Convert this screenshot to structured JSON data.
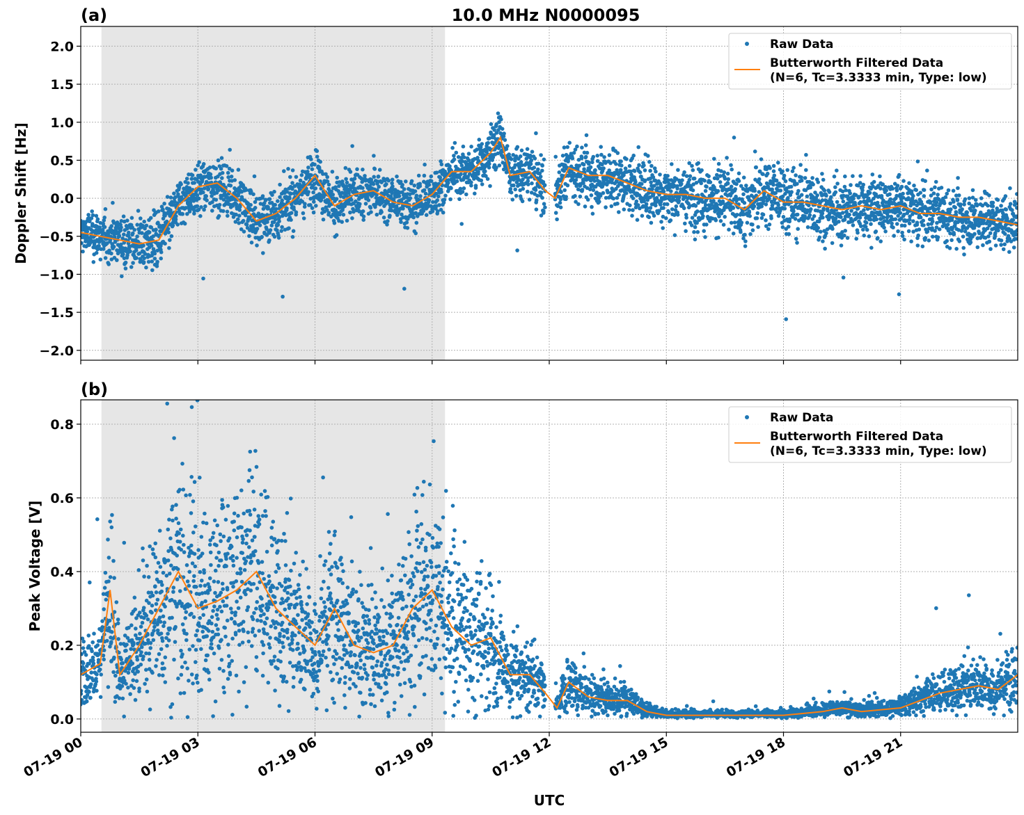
{
  "title": "10.0 MHz N0000095",
  "xlabel": "UTC",
  "x_tick_labels": [
    "07-19 00",
    "07-19 03",
    "07-19 06",
    "07-19 09",
    "07-19 12",
    "07-19 15",
    "07-19 18",
    "07-19 21"
  ],
  "colors": {
    "raw": "#1f77b4",
    "filtered": "#ff7f0e",
    "shade": "#e6e6e6"
  },
  "chart_data": [
    {
      "type": "scatter",
      "panel_label": "(a)",
      "ylabel": "Doppler Shift [Hz]",
      "x_units": "hours UTC on 07-19",
      "xlim": [
        0,
        24
      ],
      "ylim": [
        -2.13,
        2.26
      ],
      "yticks": [
        -2.0,
        -1.5,
        -1.0,
        -0.5,
        0.0,
        0.5,
        1.0,
        1.5,
        2.0
      ],
      "grid": true,
      "legend": "top-right",
      "shaded_interval_hours": [
        0.53,
        9.33
      ],
      "data_gap_hours": [
        11.9,
        12.15
      ],
      "series": [
        {
          "name": "Raw Data",
          "kind": "scatter",
          "spread_hz": [
            [
              0,
              0.3
            ],
            [
              2,
              0.35
            ],
            [
              4,
              0.35
            ],
            [
              6,
              0.35
            ],
            [
              9,
              0.3
            ],
            [
              12,
              0.35
            ],
            [
              14,
              0.4
            ],
            [
              17,
              0.45
            ],
            [
              20,
              0.4
            ],
            [
              24,
              0.35
            ]
          ]
        },
        {
          "name": "Butterworth Filtered Data\n(N=6, Tc=3.3333 min, Type: low)",
          "kind": "line",
          "x": [
            0,
            0.5,
            1,
            1.5,
            2,
            2.5,
            3,
            3.5,
            4,
            4.5,
            5,
            5.5,
            6,
            6.5,
            7,
            7.5,
            8,
            8.5,
            9,
            9.5,
            10,
            10.5,
            10.75,
            11,
            11.5,
            11.9,
            12.15,
            12.5,
            13,
            13.5,
            14,
            14.5,
            15,
            15.5,
            16,
            16.5,
            17,
            17.5,
            18,
            18.5,
            19,
            19.5,
            20,
            20.5,
            21,
            21.5,
            22,
            22.5,
            23,
            23.5,
            24
          ],
          "y": [
            -0.45,
            -0.5,
            -0.55,
            -0.6,
            -0.55,
            -0.1,
            0.15,
            0.2,
            0.0,
            -0.3,
            -0.2,
            0.0,
            0.3,
            -0.1,
            0.05,
            0.1,
            -0.05,
            -0.1,
            0.05,
            0.35,
            0.35,
            0.6,
            0.8,
            0.3,
            0.35,
            0.1,
            0.0,
            0.4,
            0.3,
            0.3,
            0.2,
            0.1,
            0.05,
            0.05,
            0.0,
            0.0,
            -0.15,
            0.1,
            -0.05,
            -0.05,
            -0.1,
            -0.15,
            -0.1,
            -0.15,
            -0.1,
            -0.2,
            -0.2,
            -0.25,
            -0.25,
            -0.3,
            -0.35
          ]
        }
      ]
    },
    {
      "type": "scatter",
      "panel_label": "(b)",
      "ylabel": "Peak Voltage [V]",
      "x_units": "hours UTC on 07-19",
      "xlim": [
        0,
        24
      ],
      "ylim": [
        -0.036,
        0.866
      ],
      "yticks": [
        0.0,
        0.2,
        0.4,
        0.6,
        0.8
      ],
      "grid": true,
      "legend": "top-right",
      "shaded_interval_hours": [
        0.53,
        9.33
      ],
      "data_gap_hours": [
        11.9,
        12.15
      ],
      "series": [
        {
          "name": "Raw Data",
          "kind": "scatter",
          "relative_spread": 0.9
        },
        {
          "name": "Butterworth Filtered Data\n(N=6, Tc=3.3333 min, Type: low)",
          "kind": "line",
          "x": [
            0,
            0.5,
            0.75,
            1,
            1.5,
            2,
            2.5,
            3,
            3.5,
            4,
            4.5,
            5,
            5.5,
            6,
            6.5,
            7,
            7.5,
            8,
            8.5,
            9,
            9.5,
            10,
            10.5,
            11,
            11.5,
            11.9,
            12.2,
            12.5,
            13,
            13.5,
            14,
            14.5,
            15,
            16,
            17,
            18,
            19,
            19.5,
            20,
            21,
            21.5,
            22,
            22.5,
            23,
            23.5,
            24
          ],
          "y": [
            0.12,
            0.15,
            0.35,
            0.12,
            0.2,
            0.3,
            0.4,
            0.3,
            0.32,
            0.35,
            0.4,
            0.3,
            0.25,
            0.2,
            0.3,
            0.2,
            0.18,
            0.2,
            0.3,
            0.35,
            0.25,
            0.2,
            0.22,
            0.12,
            0.12,
            0.07,
            0.03,
            0.1,
            0.06,
            0.05,
            0.05,
            0.02,
            0.01,
            0.01,
            0.01,
            0.01,
            0.02,
            0.03,
            0.02,
            0.03,
            0.05,
            0.07,
            0.08,
            0.09,
            0.08,
            0.12
          ]
        }
      ]
    }
  ]
}
